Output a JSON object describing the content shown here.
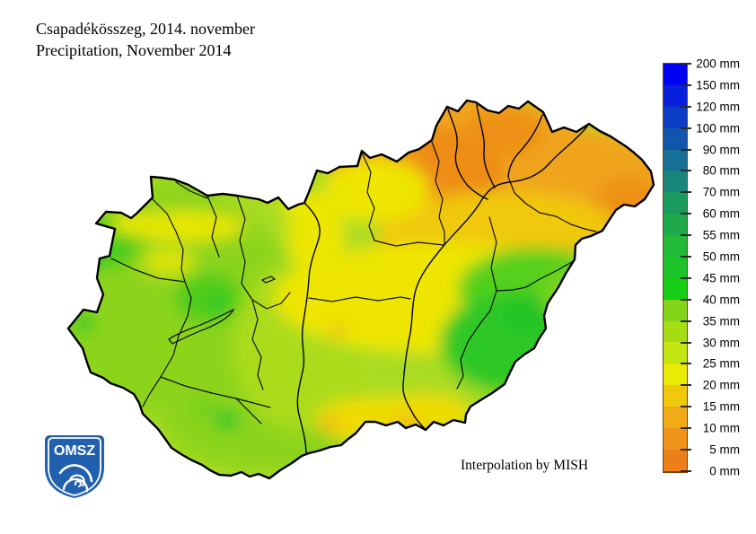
{
  "page": {
    "background": "#ffffff",
    "title_line1": "Csapadékösszeg, 2014. november",
    "title_line2": "Precipitation, November 2014"
  },
  "attribution": {
    "text": "Interpolation by MISH"
  },
  "logo": {
    "text": "OMSZ",
    "shield_color": "#2160AE"
  },
  "legend": {
    "unit": "mm",
    "stops": [
      "200 mm",
      "150 mm",
      "120 mm",
      "100 mm",
      "90 mm",
      "80 mm",
      "70 mm",
      "60 mm",
      "55 mm",
      "50 mm",
      "45 mm",
      "40 mm",
      "35 mm",
      "30 mm",
      "25 mm",
      "20 mm",
      "15 mm",
      "10 mm",
      "5 mm",
      "0 mm"
    ],
    "values_mm": [
      200,
      150,
      120,
      100,
      90,
      80,
      70,
      60,
      55,
      50,
      45,
      40,
      35,
      30,
      25,
      20,
      15,
      10,
      5,
      0
    ],
    "segment_colors": [
      "#0202F2",
      "#0620DC",
      "#0A3CC4",
      "#1156AC",
      "#166F96",
      "#19867C",
      "#1C9B60",
      "#1EA94A",
      "#22B838",
      "#1DC32A",
      "#15CE15",
      "#84D51A",
      "#A5DD15",
      "#C3E510",
      "#E9EB02",
      "#F0C90A",
      "#F0AB17",
      "#F0941B",
      "#EC7F18"
    ]
  }
}
